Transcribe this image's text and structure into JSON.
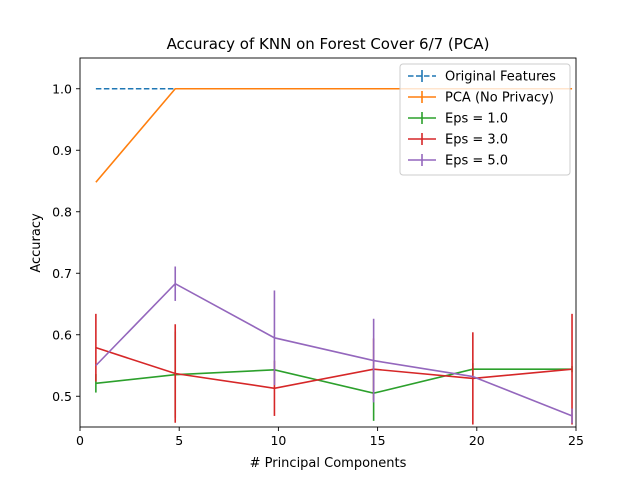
{
  "chart_data": {
    "type": "line",
    "title": "Accuracy of KNN on Forest Cover 6/7 (PCA)",
    "xlabel": "# Principal Components",
    "ylabel": "Accuracy",
    "xlim": [
      0,
      25
    ],
    "ylim": [
      0.45,
      1.05
    ],
    "xticks": [
      0,
      5,
      10,
      15,
      20,
      25
    ],
    "yticks": [
      0.5,
      0.6,
      0.7,
      0.8,
      0.9,
      1.0
    ],
    "xtick_labels": [
      "0",
      "5",
      "10",
      "15",
      "20",
      "25"
    ],
    "ytick_labels": [
      "0.5",
      "0.6",
      "0.7",
      "0.8",
      "0.9",
      "1.0"
    ],
    "grid": false,
    "legend_position": "top-right",
    "series": [
      {
        "name": "Original Features",
        "color": "#1f77b4",
        "dashed": true,
        "x": [
          0.8,
          4.8,
          9.8,
          14.8,
          19.8,
          24.8
        ],
        "y": [
          1.0,
          1.0,
          1.0,
          1.0,
          1.0,
          1.0
        ],
        "err": [
          0,
          0,
          0,
          0,
          0,
          0
        ]
      },
      {
        "name": "PCA (No Privacy)",
        "color": "#ff7f0e",
        "dashed": false,
        "x": [
          0.8,
          4.8,
          9.8,
          14.8,
          19.8,
          24.8
        ],
        "y": [
          0.848,
          1.0,
          1.0,
          1.0,
          1.0,
          1.0
        ],
        "err": [
          0,
          0,
          0,
          0,
          0,
          0
        ]
      },
      {
        "name": "Eps = 1.0",
        "color": "#2ca02c",
        "dashed": false,
        "x": [
          0.8,
          4.8,
          9.8,
          14.8,
          19.8,
          24.8
        ],
        "y": [
          0.521,
          0.535,
          0.543,
          0.505,
          0.544,
          0.544
        ],
        "err": [
          0.015,
          0.07,
          0.0,
          0.045,
          0.01,
          0.005
        ]
      },
      {
        "name": "Eps = 3.0",
        "color": "#d62728",
        "dashed": false,
        "x": [
          0.8,
          4.8,
          9.8,
          14.8,
          19.8,
          24.8
        ],
        "y": [
          0.579,
          0.537,
          0.513,
          0.544,
          0.529,
          0.544
        ],
        "err": [
          0.055,
          0.08,
          0.045,
          0.05,
          0.075,
          0.09
        ]
      },
      {
        "name": "Eps = 5.0",
        "color": "#9467bd",
        "dashed": false,
        "x": [
          0.8,
          4.8,
          9.8,
          14.8,
          19.8,
          24.8
        ],
        "y": [
          0.55,
          0.683,
          0.595,
          0.558,
          0.532,
          0.468
        ],
        "err": [
          0.0,
          0.028,
          0.077,
          0.068,
          0.0,
          0.012
        ]
      }
    ]
  }
}
